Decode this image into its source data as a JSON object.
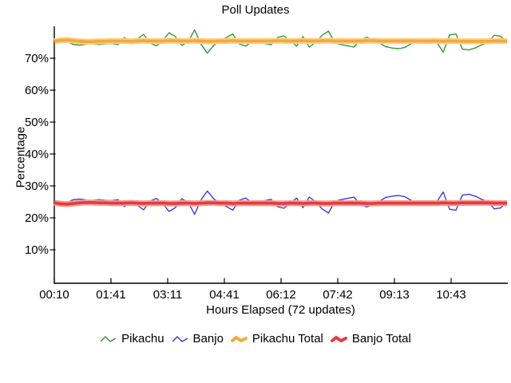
{
  "title": "Poll Updates",
  "axes": {
    "ylabel": "Percentage",
    "xlabel": "Hours Elapsed (72 updates)",
    "yticks": [
      "10%",
      "20%",
      "30%",
      "40%",
      "50%",
      "60%",
      "70%"
    ],
    "ytick_values": [
      10,
      20,
      30,
      40,
      50,
      60,
      70
    ],
    "xticks": [
      "00:10",
      "01:41",
      "03:11",
      "04:41",
      "06:12",
      "07:42",
      "09:13",
      "10:43"
    ]
  },
  "legend": [
    {
      "label": "Pikachu",
      "color": "#319931"
    },
    {
      "label": "Banjo",
      "color": "#3B3BD4"
    },
    {
      "label": "Pikachu Total",
      "color": "#F2A93C"
    },
    {
      "label": "Banjo Total",
      "color": "#E43C3C"
    }
  ],
  "colors": {
    "pikachu": "#319931",
    "banjo": "#3B3BD4",
    "pikachu_total": "#F2A93C",
    "pikachu_total_halo": "#FAD089",
    "banjo_total": "#E43C3C",
    "banjo_total_halo": "#F59C96",
    "axis": "#000000"
  },
  "chart_data": {
    "type": "line",
    "title": "Poll Updates",
    "xlabel": "Hours Elapsed (72 updates)",
    "ylabel": "Percentage",
    "ylim": [
      0,
      80
    ],
    "grid": false,
    "legend_position": "bottom",
    "x_tick_labels": [
      "00:10",
      "01:41",
      "03:11",
      "04:41",
      "06:12",
      "07:42",
      "09:13",
      "10:43"
    ],
    "n_points": 72,
    "series": [
      {
        "name": "Pikachu",
        "color": "#319931",
        "width": 1.4,
        "values": [
          75.4,
          75.8,
          75.2,
          74.3,
          74.1,
          74.4,
          74.5,
          74.3,
          74.5,
          74.6,
          74.3,
          76.5,
          74.9,
          76.0,
          77.5,
          74.8,
          73.9,
          75.5,
          78.0,
          76.8,
          74.0,
          75.2,
          78.9,
          74.4,
          71.6,
          74.0,
          75.5,
          76.5,
          77.6,
          74.5,
          73.8,
          75.2,
          75.0,
          74.6,
          74.2,
          76.5,
          77.0,
          75.5,
          73.8,
          76.8,
          73.5,
          75.0,
          77.2,
          78.5,
          74.8,
          74.3,
          73.9,
          73.5,
          75.8,
          76.6,
          75.9,
          74.8,
          73.6,
          73.2,
          73.0,
          73.4,
          74.6,
          75.3,
          75.5,
          75.2,
          74.9,
          71.9,
          77.3,
          77.6,
          72.9,
          72.6,
          73.2,
          74.2,
          74.8,
          77.2,
          76.9,
          75.1
        ]
      },
      {
        "name": "Banjo",
        "color": "#3B3BD4",
        "width": 1.4,
        "values": [
          24.6,
          24.2,
          24.8,
          25.7,
          25.9,
          25.6,
          25.5,
          25.7,
          25.5,
          25.4,
          25.7,
          23.5,
          25.1,
          24.0,
          22.5,
          25.2,
          26.1,
          24.5,
          22.0,
          23.2,
          26.0,
          24.8,
          21.1,
          25.6,
          28.4,
          26.0,
          24.5,
          23.5,
          22.4,
          25.5,
          26.2,
          24.8,
          25.0,
          25.4,
          25.8,
          23.5,
          23.0,
          24.5,
          26.2,
          23.2,
          26.5,
          25.0,
          22.8,
          21.5,
          25.2,
          25.7,
          26.1,
          26.5,
          24.2,
          23.4,
          24.1,
          25.2,
          26.4,
          26.8,
          27.0,
          26.6,
          25.4,
          24.7,
          24.5,
          24.8,
          25.1,
          28.1,
          22.7,
          22.4,
          27.1,
          27.4,
          26.8,
          25.8,
          25.2,
          22.8,
          23.1,
          24.9
        ]
      },
      {
        "name": "Pikachu Total",
        "color": "#F2A93C",
        "halo_color": "#FAD089",
        "width": 3.6,
        "values": [
          75.3,
          75.6,
          75.7,
          75.5,
          75.3,
          75.2,
          75.2,
          75.3,
          75.3,
          75.4,
          75.4,
          75.4,
          75.3,
          75.4,
          75.5,
          75.4,
          75.4,
          75.4,
          75.5,
          75.5,
          75.4,
          75.4,
          75.5,
          75.4,
          75.3,
          75.3,
          75.4,
          75.4,
          75.5,
          75.4,
          75.4,
          75.4,
          75.4,
          75.4,
          75.4,
          75.5,
          75.5,
          75.4,
          75.4,
          75.5,
          75.4,
          75.4,
          75.5,
          75.5,
          75.4,
          75.4,
          75.4,
          75.4,
          75.4,
          75.5,
          75.5,
          75.4,
          75.4,
          75.4,
          75.4,
          75.4,
          75.4,
          75.4,
          75.4,
          75.4,
          75.4,
          75.3,
          75.4,
          75.4,
          75.3,
          75.3,
          75.3,
          75.3,
          75.3,
          75.4,
          75.4,
          75.4
        ]
      },
      {
        "name": "Banjo Total",
        "color": "#E43C3C",
        "halo_color": "#F59C96",
        "width": 3.6,
        "values": [
          24.7,
          24.4,
          24.3,
          24.5,
          24.7,
          24.8,
          24.8,
          24.7,
          24.7,
          24.6,
          24.6,
          24.6,
          24.7,
          24.6,
          24.5,
          24.6,
          24.6,
          24.6,
          24.5,
          24.5,
          24.6,
          24.6,
          24.5,
          24.6,
          24.7,
          24.7,
          24.6,
          24.6,
          24.5,
          24.6,
          24.6,
          24.6,
          24.6,
          24.6,
          24.6,
          24.5,
          24.5,
          24.6,
          24.6,
          24.5,
          24.6,
          24.6,
          24.5,
          24.5,
          24.6,
          24.6,
          24.6,
          24.6,
          24.6,
          24.5,
          24.5,
          24.6,
          24.6,
          24.6,
          24.6,
          24.6,
          24.6,
          24.6,
          24.6,
          24.6,
          24.6,
          24.7,
          24.6,
          24.6,
          24.7,
          24.7,
          24.7,
          24.7,
          24.7,
          24.6,
          24.6,
          24.6
        ]
      }
    ]
  }
}
